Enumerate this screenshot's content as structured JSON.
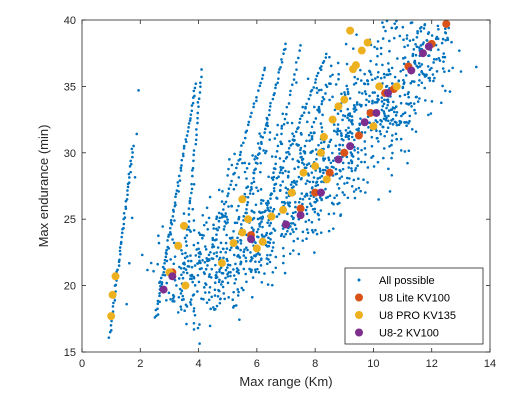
{
  "chart_data": {
    "type": "scatter",
    "title": "",
    "xlabel": "Max range (Km)",
    "ylabel": "Max endurance (min)",
    "xlim": [
      0,
      14
    ],
    "ylim": [
      15,
      40
    ],
    "xticks": [
      0,
      2,
      4,
      6,
      8,
      10,
      12,
      14
    ],
    "yticks": [
      15,
      20,
      25,
      30,
      35,
      40
    ],
    "legend_position": "bottom-right",
    "grid": false,
    "series": [
      {
        "name": "All possible",
        "color": "#0072BD",
        "marker": "dot",
        "clusters": [
          {
            "shape": "line",
            "from": [
              0.95,
              16.2
            ],
            "to": [
              1.75,
              30.5
            ],
            "count": 55
          },
          {
            "shape": "line",
            "from": [
              1.55,
              18.5
            ],
            "to": [
              1.95,
              34.8
            ],
            "count": 6
          },
          {
            "shape": "line",
            "from": [
              2.5,
              17.5
            ],
            "to": [
              3.9,
              35.2
            ],
            "count": 65
          },
          {
            "shape": "line",
            "from": [
              2.6,
              17.8
            ],
            "to": [
              3.3,
              27.0
            ],
            "count": 10
          },
          {
            "shape": "line",
            "from": [
              3.4,
              18.5
            ],
            "to": [
              4.1,
              36.2
            ],
            "count": 45
          },
          {
            "shape": "line",
            "from": [
              4.2,
              21.0
            ],
            "to": [
              6.3,
              36.5
            ],
            "count": 50
          },
          {
            "shape": "line",
            "from": [
              5.3,
              23.0
            ],
            "to": [
              7.0,
              38.2
            ],
            "count": 55
          },
          {
            "shape": "line",
            "from": [
              6.5,
              28.0
            ],
            "to": [
              7.5,
              38.0
            ],
            "count": 25
          },
          {
            "shape": "line",
            "from": [
              6.0,
              24.0
            ],
            "to": [
              8.4,
              37.5
            ],
            "count": 55
          },
          {
            "shape": "line",
            "from": [
              7.4,
              29.0
            ],
            "to": [
              8.6,
              36.0
            ],
            "count": 20
          },
          {
            "shape": "band",
            "from": [
              2.9,
              19.0
            ],
            "to": [
              12.5,
              39.5
            ],
            "width": 2.5,
            "count": 750
          },
          {
            "shape": "band",
            "from": [
              4.0,
              19.5
            ],
            "to": [
              11.0,
              33.0
            ],
            "width": 2.0,
            "count": 350
          },
          {
            "shape": "band",
            "from": [
              7.0,
              24.5
            ],
            "to": [
              12.3,
              38.5
            ],
            "width": 1.2,
            "count": 200
          }
        ]
      },
      {
        "name": "U8 Lite KV100",
        "color": "#D95319",
        "marker": "circle",
        "points": [
          [
            3.1,
            21.0
          ],
          [
            5.8,
            23.8
          ],
          [
            7.5,
            25.8
          ],
          [
            8.0,
            27.0
          ],
          [
            8.5,
            28.5
          ],
          [
            9.0,
            30.0
          ],
          [
            9.5,
            31.3
          ],
          [
            9.9,
            33.0
          ],
          [
            10.4,
            34.5
          ],
          [
            10.7,
            34.8
          ],
          [
            11.2,
            36.5
          ],
          [
            12.0,
            38.2
          ],
          [
            12.5,
            39.7
          ]
        ]
      },
      {
        "name": "U8 PRO KV135",
        "color": "#EDB120",
        "marker": "circle",
        "points": [
          [
            1.0,
            17.7
          ],
          [
            1.05,
            19.3
          ],
          [
            1.15,
            20.7
          ],
          [
            3.0,
            21.0
          ],
          [
            3.3,
            23.0
          ],
          [
            3.5,
            24.5
          ],
          [
            3.55,
            20.0
          ],
          [
            4.8,
            21.7
          ],
          [
            5.2,
            23.2
          ],
          [
            5.5,
            24.0
          ],
          [
            5.7,
            25.0
          ],
          [
            5.5,
            26.5
          ],
          [
            6.0,
            22.8
          ],
          [
            6.2,
            23.3
          ],
          [
            6.5,
            25.2
          ],
          [
            6.9,
            25.7
          ],
          [
            7.2,
            27.0
          ],
          [
            7.6,
            28.5
          ],
          [
            8.0,
            29.0
          ],
          [
            8.2,
            30.0
          ],
          [
            8.3,
            31.2
          ],
          [
            8.4,
            28.0
          ],
          [
            8.6,
            32.5
          ],
          [
            8.8,
            33.5
          ],
          [
            9.0,
            34.0
          ],
          [
            9.3,
            36.3
          ],
          [
            9.4,
            36.6
          ],
          [
            9.6,
            37.7
          ],
          [
            9.8,
            38.3
          ],
          [
            9.2,
            39.2
          ],
          [
            10.0,
            32.0
          ],
          [
            10.2,
            35.0
          ],
          [
            10.8,
            35.0
          ]
        ]
      },
      {
        "name": "U8-2 KV100",
        "color": "#7E2F8E",
        "marker": "circle",
        "points": [
          [
            2.8,
            19.7
          ],
          [
            3.1,
            20.7
          ],
          [
            5.8,
            23.5
          ],
          [
            7.0,
            24.6
          ],
          [
            7.5,
            25.3
          ],
          [
            8.2,
            27.0
          ],
          [
            8.8,
            29.5
          ],
          [
            9.2,
            30.5
          ],
          [
            9.7,
            32.3
          ],
          [
            10.1,
            33.0
          ],
          [
            10.5,
            34.5
          ],
          [
            11.3,
            36.2
          ],
          [
            11.7,
            37.5
          ],
          [
            11.9,
            38.0
          ]
        ]
      }
    ]
  }
}
